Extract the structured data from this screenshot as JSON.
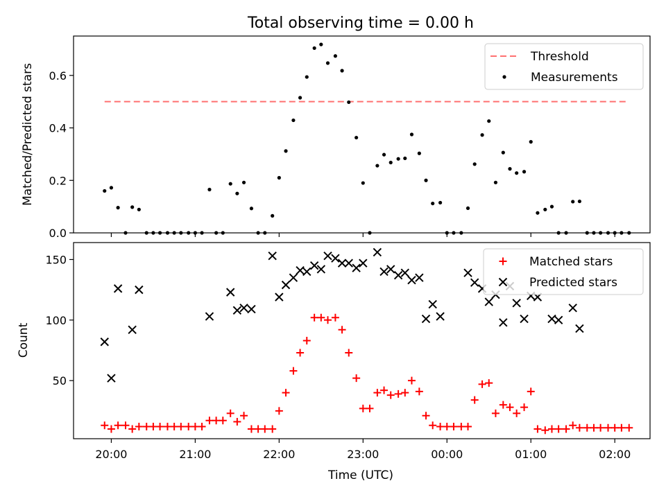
{
  "title": "Total observing time = 0.00 h",
  "xlabel": "Time (UTC)",
  "x_ticks": [
    "20:00",
    "21:00",
    "22:00",
    "23:00",
    "00:00",
    "01:00",
    "02:00"
  ],
  "chart_data": [
    {
      "type": "scatter",
      "title": "Total observing time = 0.00 h",
      "ylabel": "Matched/Predicted stars",
      "xlabel": "",
      "x_unit": "hours after 19:00 UTC",
      "xlim": [
        19.55,
        26.42
      ],
      "ylim": [
        0.0,
        0.75
      ],
      "y_ticks": [
        "0.0",
        "0.2",
        "0.4",
        "0.6"
      ],
      "legend_position": "top-right",
      "series": [
        {
          "name": "Threshold",
          "kind": "line",
          "style": "dashed",
          "color": "#ff7070",
          "x": [
            19.92,
            26.17
          ],
          "y": [
            0.5,
            0.5
          ]
        },
        {
          "name": "Measurements",
          "kind": "points",
          "color": "#000000",
          "x": [
            19.92,
            20,
            20.08,
            20.17,
            20.25,
            20.33,
            20.42,
            20.5,
            20.58,
            20.67,
            20.75,
            20.83,
            20.92,
            21,
            21.08,
            21.17,
            21.25,
            21.33,
            21.42,
            21.5,
            21.58,
            21.67,
            21.75,
            21.83,
            21.92,
            22,
            22.08,
            22.17,
            22.25,
            22.33,
            22.42,
            22.5,
            22.58,
            22.67,
            22.75,
            22.83,
            22.92,
            23,
            23.08,
            23.17,
            23.25,
            23.33,
            23.42,
            23.5,
            23.58,
            23.67,
            23.75,
            23.83,
            23.92,
            24,
            24.08,
            24.17,
            24.25,
            24.33,
            24.42,
            24.5,
            24.58,
            24.67,
            24.75,
            24.83,
            24.92,
            25,
            25.08,
            25.17,
            25.25,
            25.33,
            25.42,
            25.5,
            25.58,
            25.67,
            25.75,
            25.83,
            25.92,
            26,
            26.08,
            26.17
          ],
          "y": [
            0.16,
            0.172,
            0.096,
            0,
            0.098,
            0.089,
            0,
            0,
            0,
            0,
            0,
            0,
            0,
            0,
            0,
            0.165,
            0,
            0,
            0.187,
            0.15,
            0.192,
            0.093,
            0,
            0,
            0.065,
            0.21,
            0.312,
            0.429,
            0.515,
            0.594,
            0.704,
            0.718,
            0.647,
            0.674,
            0.618,
            0.498,
            0.363,
            0.19,
            0,
            0.256,
            0.298,
            0.268,
            0.282,
            0.284,
            0.375,
            0.303,
            0.2,
            0.112,
            0.115,
            0,
            0,
            0,
            0.094,
            0.262,
            0.373,
            0.426,
            0.192,
            0.306,
            0.244,
            0.228,
            0.233,
            0.347,
            0.076,
            0.089,
            0.1,
            0,
            0,
            0.119,
            0.12,
            0,
            0,
            0,
            0,
            0,
            0,
            0
          ]
        }
      ]
    },
    {
      "type": "scatter",
      "title": "",
      "ylabel": "Count",
      "xlabel": "Time (UTC)",
      "x_unit": "hours after 19:00 UTC",
      "xlim": [
        19.55,
        26.42
      ],
      "ylim": [
        2,
        164
      ],
      "y_ticks": [
        "50",
        "100",
        "150"
      ],
      "legend_position": "top-right",
      "series": [
        {
          "name": "Matched stars",
          "marker": "+",
          "color": "#ff0000",
          "x": [
            19.92,
            20,
            20.08,
            20.17,
            20.25,
            20.33,
            20.42,
            20.5,
            20.58,
            20.67,
            20.75,
            20.83,
            20.92,
            21,
            21.08,
            21.17,
            21.25,
            21.33,
            21.42,
            21.5,
            21.58,
            21.67,
            21.75,
            21.83,
            21.92,
            22,
            22.08,
            22.17,
            22.25,
            22.33,
            22.42,
            22.5,
            22.58,
            22.67,
            22.75,
            22.83,
            22.92,
            23,
            23.08,
            23.17,
            23.25,
            23.33,
            23.42,
            23.5,
            23.58,
            23.67,
            23.75,
            23.83,
            23.92,
            24,
            24.08,
            24.17,
            24.25,
            24.33,
            24.42,
            24.5,
            24.58,
            24.67,
            24.75,
            24.83,
            24.92,
            25,
            25.08,
            25.17,
            25.25,
            25.33,
            25.42,
            25.5,
            25.58,
            25.67,
            25.75,
            25.83,
            25.92,
            26,
            26.08,
            26.17
          ],
          "y": [
            13,
            10,
            13,
            13,
            10,
            12,
            12,
            12,
            12,
            12,
            12,
            12,
            12,
            12,
            12,
            17,
            17,
            17,
            23,
            16,
            21,
            10,
            10,
            10,
            10,
            25,
            40,
            58,
            73,
            83,
            102,
            102,
            100,
            102,
            92,
            73,
            52,
            27,
            27,
            40,
            42,
            38,
            39,
            40,
            50,
            41,
            21,
            13,
            12,
            12,
            12,
            12,
            12,
            34,
            47,
            48,
            23,
            30,
            28,
            23,
            28,
            41,
            10,
            9,
            10,
            10,
            10,
            13,
            11,
            11,
            11,
            11,
            11,
            11,
            11,
            11
          ]
        },
        {
          "name": "Predicted stars",
          "marker": "x",
          "color": "#000000",
          "x": [
            19.92,
            20,
            20.08,
            20.17,
            20.25,
            20.33,
            20.42,
            20.5,
            20.58,
            20.67,
            20.75,
            20.83,
            20.92,
            21,
            21.08,
            21.17,
            21.25,
            21.33,
            21.42,
            21.5,
            21.58,
            21.67,
            21.75,
            21.83,
            21.92,
            22,
            22.08,
            22.17,
            22.25,
            22.33,
            22.42,
            22.5,
            22.58,
            22.67,
            22.75,
            22.83,
            22.92,
            23,
            23.08,
            23.17,
            23.25,
            23.33,
            23.42,
            23.5,
            23.58,
            23.67,
            23.75,
            23.83,
            23.92,
            24,
            24.08,
            24.17,
            24.25,
            24.33,
            24.42,
            24.5,
            24.58,
            24.67,
            24.75,
            24.83,
            24.92,
            25,
            25.08,
            25.17,
            25.25,
            25.33,
            25.42,
            25.5,
            25.58,
            25.67,
            25.75,
            25.83,
            25.92,
            26,
            26.08,
            26.17
          ],
          "y": [
            82,
            52,
            126,
            null,
            92,
            125,
            null,
            null,
            null,
            null,
            null,
            null,
            null,
            null,
            null,
            103,
            null,
            null,
            123,
            108,
            110,
            109,
            null,
            null,
            153,
            119,
            129,
            135,
            141,
            140,
            145,
            142,
            153,
            151,
            147,
            147,
            143,
            147,
            null,
            156,
            140,
            142,
            137,
            139,
            133,
            135,
            101,
            113,
            103,
            null,
            null,
            null,
            139,
            131,
            126,
            115,
            121,
            98,
            128,
            114,
            101,
            120,
            119,
            null,
            101,
            100,
            null,
            110,
            93,
            null,
            null,
            null,
            null,
            null,
            null,
            null
          ]
        }
      ]
    }
  ]
}
